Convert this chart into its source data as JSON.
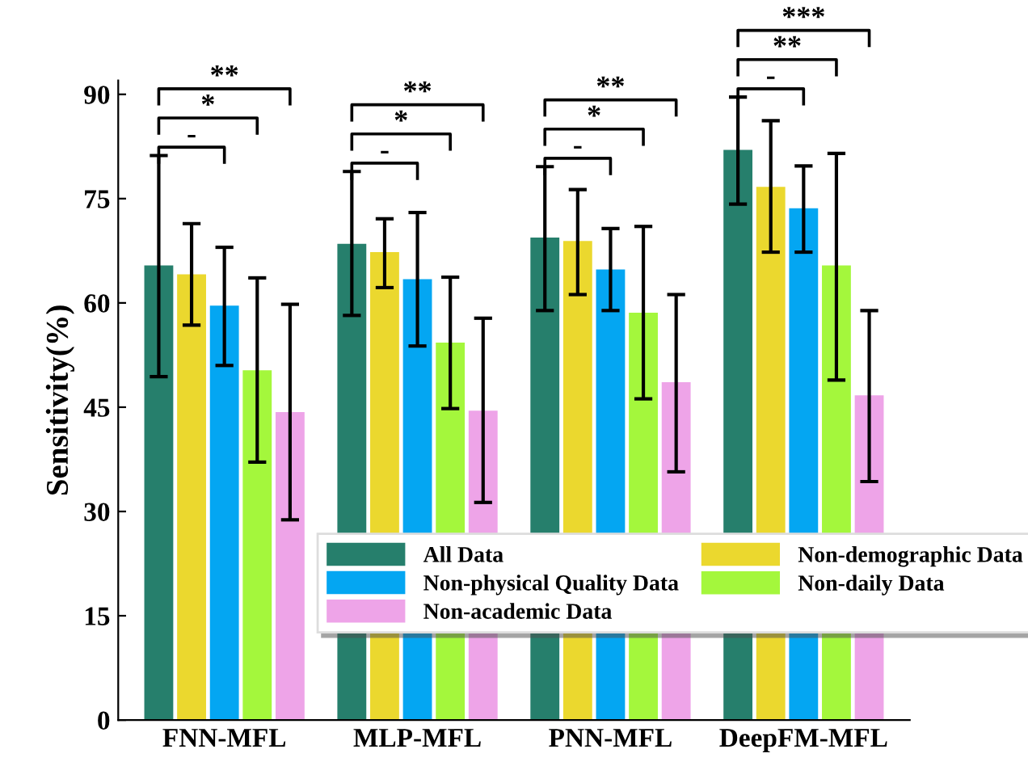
{
  "chart_data": {
    "type": "bar",
    "ylabel": "Sensitivity(%)",
    "categories": [
      "FNN-MFL",
      "MLP-MFL",
      "PNN-MFL",
      "DeepFM-MFL"
    ],
    "series": [
      {
        "name": "All Data",
        "color": "#267f6c",
        "values": [
          65.4,
          68.5,
          69.4,
          82.0
        ],
        "errors": [
          [
            49.4,
            81.2
          ],
          [
            58.2,
            78.9
          ],
          [
            58.9,
            79.6
          ],
          [
            74.2,
            89.6
          ]
        ]
      },
      {
        "name": "Non-physical Quality Data",
        "color": "#04a6f2",
        "values": [
          59.6,
          63.4,
          64.8,
          73.6
        ],
        "errors": [
          [
            51.0,
            68.0
          ],
          [
            53.8,
            73.0
          ],
          [
            58.9,
            70.7
          ],
          [
            67.3,
            79.7
          ]
        ]
      },
      {
        "name": "Non-academic Data",
        "color": "#eea4e8",
        "values": [
          44.3,
          44.5,
          48.6,
          46.7
        ],
        "errors": [
          [
            28.8,
            59.8
          ],
          [
            31.3,
            57.8
          ],
          [
            35.7,
            61.2
          ],
          [
            34.3,
            58.9
          ]
        ]
      },
      {
        "name": "Non-demographic Data",
        "color": "#ebd82e",
        "values": [
          64.1,
          67.3,
          68.9,
          76.7
        ],
        "errors": [
          [
            56.8,
            71.4
          ],
          [
            62.2,
            72.1
          ],
          [
            61.2,
            76.3
          ],
          [
            67.3,
            86.2
          ]
        ]
      },
      {
        "name": "Non-daily Data",
        "color": "#a4f73c",
        "values": [
          50.3,
          54.3,
          58.6,
          65.4
        ],
        "errors": [
          [
            37.1,
            63.6
          ],
          [
            44.8,
            63.7
          ],
          [
            46.2,
            71.0
          ],
          [
            48.9,
            81.5
          ]
        ]
      }
    ],
    "ylim": [
      0,
      92
    ],
    "yticks": [
      0,
      15,
      30,
      45,
      60,
      75,
      90
    ],
    "grid": false,
    "legend": "bottom right",
    "annotations": [
      "-",
      "*",
      "**",
      "-",
      "*",
      "**",
      "-",
      "*",
      "**",
      "-",
      "**",
      "***"
    ]
  }
}
